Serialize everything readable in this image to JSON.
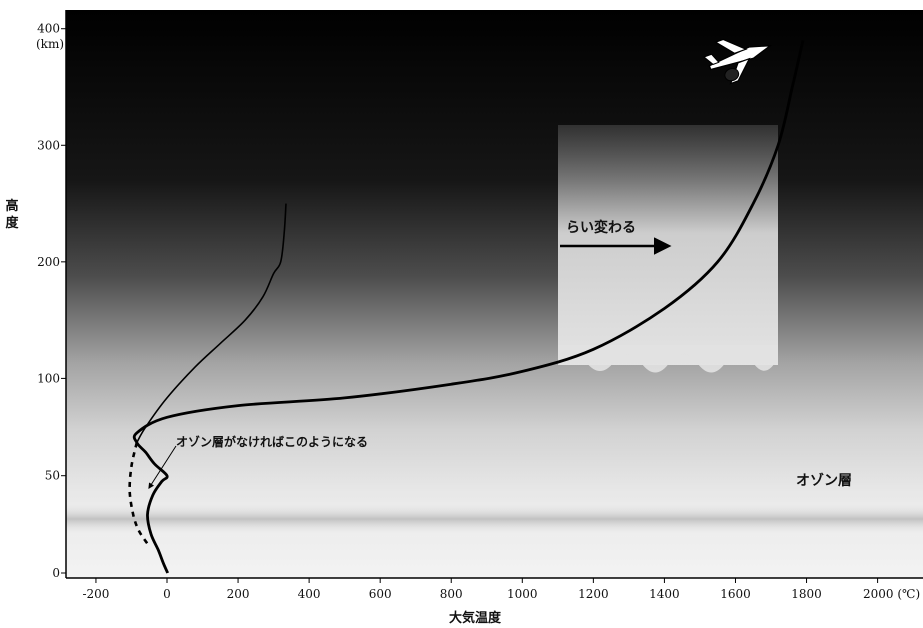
{
  "chart_data": {
    "type": "line",
    "x_ticks": [
      "-200",
      "0",
      "200",
      "400",
      "600",
      "800",
      "1000",
      "1200",
      "1400",
      "1600",
      "1800",
      "2000"
    ],
    "x_unit": "(℃)",
    "y_ticks": [
      "0",
      "50",
      "100",
      "200",
      "300",
      "400"
    ],
    "y_unit": "(km)",
    "xlabel": "大気温度",
    "ylabel": "高度",
    "xlim": [
      -280,
      2100
    ],
    "ylim": [
      0,
      405
    ],
    "series": [
      {
        "style": "thick-solid",
        "points": [
          [
            2,
            0
          ],
          [
            -10,
            5
          ],
          [
            -25,
            12
          ],
          [
            -45,
            20
          ],
          [
            -55,
            30
          ],
          [
            -40,
            40
          ],
          [
            -15,
            47
          ],
          [
            0,
            50
          ],
          [
            -35,
            56
          ],
          [
            -60,
            62
          ],
          [
            -85,
            67
          ],
          [
            -85,
            72
          ],
          [
            0,
            80
          ],
          [
            200,
            86
          ],
          [
            500,
            90
          ],
          [
            800,
            97
          ],
          [
            1000,
            106
          ],
          [
            1200,
            125
          ],
          [
            1400,
            160
          ],
          [
            1550,
            200
          ],
          [
            1650,
            250
          ],
          [
            1720,
            300
          ],
          [
            1760,
            350
          ],
          [
            1790,
            390
          ]
        ]
      },
      {
        "style": "thin-solid",
        "points": [
          [
            -85,
            67
          ],
          [
            -60,
            75
          ],
          [
            0,
            90
          ],
          [
            80,
            110
          ],
          [
            150,
            130
          ],
          [
            220,
            150
          ],
          [
            270,
            170
          ],
          [
            300,
            190
          ],
          [
            320,
            200
          ],
          [
            330,
            225
          ],
          [
            335,
            250
          ]
        ]
      },
      {
        "style": "dashed",
        "points": [
          [
            -85,
            67
          ],
          [
            -100,
            55
          ],
          [
            -105,
            42
          ],
          [
            -95,
            30
          ],
          [
            -80,
            22
          ],
          [
            -55,
            15
          ]
        ]
      }
    ],
    "annotations": {
      "temperature_change": "らい変わる",
      "no_ozone": "オゾン層がなければこのようになる",
      "ozone_layer": "オゾン層"
    },
    "colors": {
      "sky_top": "#000000",
      "sky_bottom": "#ffffff",
      "ozone_band": "#bdbdbd",
      "curve": "#000000",
      "inset_box": "#e4e4e4"
    },
    "icons": [
      "space-shuttle-icon"
    ]
  }
}
